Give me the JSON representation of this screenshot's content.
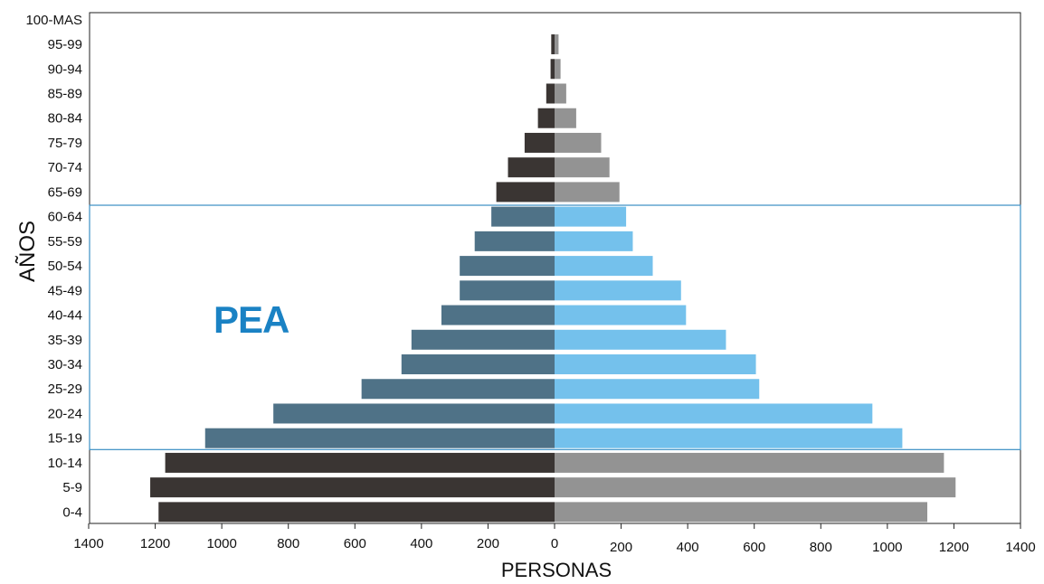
{
  "chart_data": {
    "type": "bar",
    "orientation": "horizontal",
    "variant": "population-pyramid",
    "xlabel": "PERSONAS",
    "ylabel": "AÑOS",
    "x_ticks_left": [
      "1400",
      "1200",
      "1000",
      "800",
      "600",
      "400",
      "200",
      "0"
    ],
    "x_ticks_right": [
      "200",
      "400",
      "600",
      "800",
      "1000",
      "1200",
      "1400"
    ],
    "xlim": [
      -1400,
      1400
    ],
    "categories": [
      "0-4",
      "5-9",
      "10-14",
      "15-19",
      "20-24",
      "25-29",
      "30-34",
      "35-39",
      "40-44",
      "45-49",
      "50-54",
      "55-59",
      "60-64",
      "65-69",
      "70-74",
      "75-79",
      "80-84",
      "85-89",
      "90-94",
      "95-99",
      "100-MAS"
    ],
    "series": [
      {
        "side": "left",
        "values": [
          1190,
          1215,
          1170,
          1050,
          845,
          580,
          460,
          430,
          340,
          285,
          285,
          240,
          190,
          175,
          140,
          90,
          50,
          25,
          12,
          10,
          0
        ]
      },
      {
        "side": "right",
        "values": [
          1120,
          1205,
          1170,
          1045,
          955,
          615,
          605,
          515,
          395,
          380,
          295,
          235,
          215,
          195,
          165,
          140,
          65,
          35,
          18,
          12,
          0
        ]
      }
    ],
    "annotation": {
      "text": "PEA",
      "range": [
        "15-19",
        "60-64"
      ]
    },
    "colors": {
      "left_default": "#3a3533",
      "right_default": "#939393",
      "left_pea": "#4f7287",
      "right_pea": "#74c1ec",
      "pea_box": "#3a8fc4",
      "pea_text": "#1a82c4"
    },
    "grid": false,
    "legend": "none"
  }
}
